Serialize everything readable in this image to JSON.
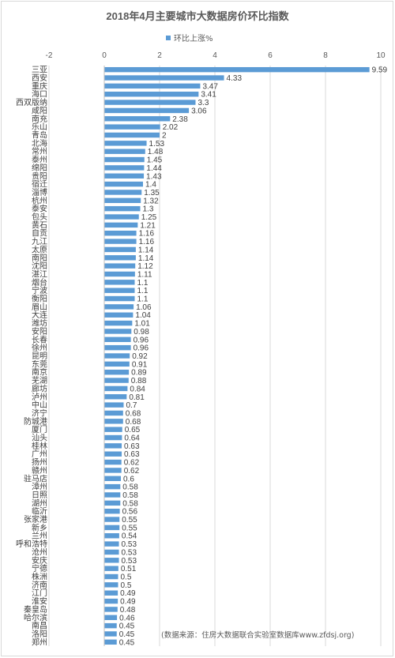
{
  "chart_data": {
    "type": "bar",
    "orientation": "horizontal",
    "title": "2018年4月主要城市大数据房价环比指数",
    "legend": "top-center",
    "series": [
      {
        "name": "环比上涨%",
        "color": "#5b9bd5"
      }
    ],
    "xlim": [
      -2,
      10
    ],
    "xticks": [
      -2,
      0,
      2,
      4,
      6,
      8,
      10
    ],
    "grid": true,
    "categories": [
      "三亚",
      "西安",
      "重庆",
      "海口",
      "西双版纳",
      "咸阳",
      "南充",
      "乐山",
      "青岛",
      "北海",
      "常州",
      "泰州",
      "绵阳",
      "贵阳",
      "宿迁",
      "淄博",
      "杭州",
      "泰安",
      "包头",
      "黄石",
      "自贡",
      "九江",
      "太原",
      "南阳",
      "沈阳",
      "湛江",
      "烟台",
      "宁波",
      "衡阳",
      "眉山",
      "大连",
      "潍坊",
      "安阳",
      "长春",
      "徐州",
      "昆明",
      "东莞",
      "南京",
      "芜湖",
      "廊坊",
      "泸州",
      "中山",
      "济宁",
      "防城港",
      "厦门",
      "汕头",
      "桂林",
      "广州",
      "扬州",
      "赣州",
      "驻马店",
      "漳州",
      "日照",
      "湖州",
      "临沂",
      "张家港",
      "新乡",
      "兰州",
      "呼和浩特",
      "沧州",
      "安庆",
      "宁德",
      "株洲",
      "济南",
      "江门",
      "淮安",
      "秦皇岛",
      "哈尔滨",
      "南昌",
      "洛阳",
      "郑州"
    ],
    "values": [
      9.59,
      4.33,
      3.47,
      3.41,
      3.3,
      3.06,
      2.38,
      2.02,
      2,
      1.53,
      1.48,
      1.45,
      1.44,
      1.43,
      1.4,
      1.35,
      1.32,
      1.3,
      1.25,
      1.21,
      1.16,
      1.16,
      1.14,
      1.14,
      1.12,
      1.11,
      1.1,
      1.1,
      1.1,
      1.06,
      1.04,
      1.01,
      0.98,
      0.96,
      0.96,
      0.92,
      0.91,
      0.89,
      0.88,
      0.84,
      0.81,
      0.7,
      0.68,
      0.68,
      0.65,
      0.64,
      0.63,
      0.63,
      0.62,
      0.62,
      0.6,
      0.58,
      0.58,
      0.58,
      0.56,
      0.55,
      0.55,
      0.54,
      0.53,
      0.53,
      0.53,
      0.51,
      0.5,
      0.5,
      0.49,
      0.49,
      0.48,
      0.46,
      0.45,
      0.45,
      0.45
    ],
    "value_labels": [
      "9.59",
      "4.33",
      "3.47",
      "3.41",
      "3.3",
      "3.06",
      "2.38",
      "2.02",
      "2",
      "1.53",
      "1.48",
      "1.45",
      "1.44",
      "1.43",
      "1.4",
      "1.35",
      "1.32",
      "1.3",
      "1.25",
      "1.21",
      "1.16",
      "1.16",
      "1.14",
      "1.14",
      "1.12",
      "1.11",
      "1.1",
      "1.1",
      "1.1",
      "1.06",
      "1.04",
      "1.01",
      "0.98",
      "0.96",
      "0.96",
      "0.92",
      "0.91",
      "0.89",
      "0.88",
      "0.84",
      "0.81",
      "0.7",
      "0.68",
      "0.68",
      "0.65",
      "0.64",
      "0.63",
      "0.63",
      "0.62",
      "0.62",
      "0.6",
      "0.58",
      "0.58",
      "0.58",
      "0.56",
      "0.55",
      "0.55",
      "0.54",
      "0.53",
      "0.53",
      "0.53",
      "0.51",
      "0.5",
      "0.5",
      "0.49",
      "0.49",
      "0.48",
      "0.46",
      "0.45",
      "0.45",
      "0.45"
    ]
  },
  "source_note": "(数据来源：住房大数据联合实验室数据库www.zfdsj.org)"
}
